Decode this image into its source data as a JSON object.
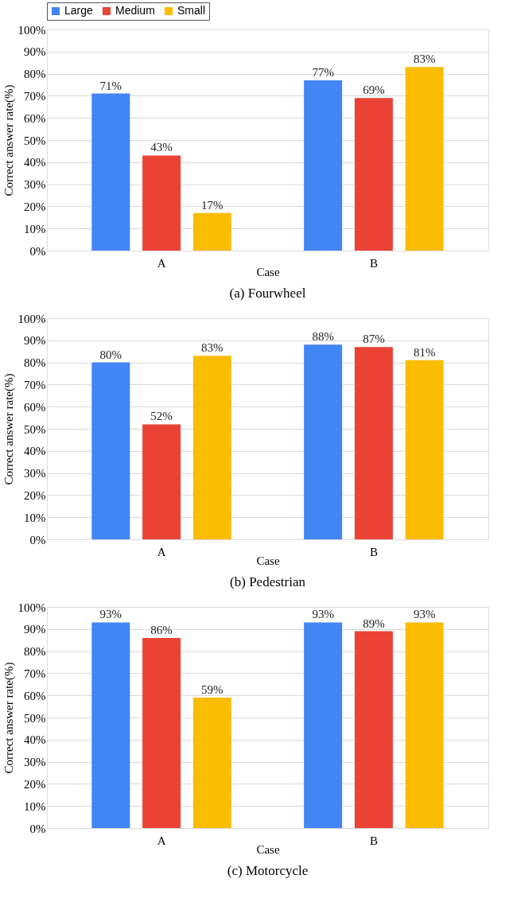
{
  "chart_data": [
    {
      "type": "bar",
      "title": "(a)  Fourwheel",
      "xlabel": "Case",
      "ylabel": "Correct answer rate(%)",
      "categories": [
        "A",
        "B"
      ],
      "series": [
        {
          "name": "Large",
          "color": "#4285f4",
          "values": [
            71,
            77
          ],
          "value_labels": [
            "71%",
            "77%"
          ]
        },
        {
          "name": "Medium",
          "color": "#ea4335",
          "values": [
            43,
            69
          ],
          "value_labels": [
            "43%",
            "69%"
          ]
        },
        {
          "name": "Small",
          "color": "#fbbc04",
          "values": [
            17,
            83
          ],
          "value_labels": [
            "17%",
            "83%"
          ]
        }
      ],
      "ylim": [
        0,
        100
      ],
      "yticks": [
        {
          "value": 0,
          "label": "0%"
        },
        {
          "value": 10,
          "label": "10%"
        },
        {
          "value": 20,
          "label": "20%"
        },
        {
          "value": 30,
          "label": "30%"
        },
        {
          "value": 40,
          "label": "40%"
        },
        {
          "value": 50,
          "label": "50%"
        },
        {
          "value": 60,
          "label": "60%"
        },
        {
          "value": 70,
          "label": "70%"
        },
        {
          "value": 80,
          "label": "80%"
        },
        {
          "value": 90,
          "label": "90%"
        },
        {
          "value": 100,
          "label": "100%"
        }
      ],
      "grid": "y",
      "legend": "top"
    },
    {
      "type": "bar",
      "title": "(b)  Pedestrian",
      "xlabel": "Case",
      "ylabel": "Correct answer rate(%)",
      "categories": [
        "A",
        "B"
      ],
      "series": [
        {
          "name": "Large",
          "color": "#4285f4",
          "values": [
            80,
            88
          ],
          "value_labels": [
            "80%",
            "88%"
          ]
        },
        {
          "name": "Medium",
          "color": "#ea4335",
          "values": [
            52,
            87
          ],
          "value_labels": [
            "52%",
            "87%"
          ]
        },
        {
          "name": "Small",
          "color": "#fbbc04",
          "values": [
            83,
            81
          ],
          "value_labels": [
            "83%",
            "81%"
          ]
        }
      ],
      "ylim": [
        0,
        100
      ],
      "yticks": [
        {
          "value": 0,
          "label": "0%"
        },
        {
          "value": 10,
          "label": "10%"
        },
        {
          "value": 20,
          "label": "20%"
        },
        {
          "value": 30,
          "label": "30%"
        },
        {
          "value": 40,
          "label": "40%"
        },
        {
          "value": 50,
          "label": "50%"
        },
        {
          "value": 60,
          "label": "60%"
        },
        {
          "value": 70,
          "label": "70%"
        },
        {
          "value": 80,
          "label": "80%"
        },
        {
          "value": 90,
          "label": "90%"
        },
        {
          "value": 100,
          "label": "100%"
        }
      ],
      "grid": "y",
      "legend": "top"
    },
    {
      "type": "bar",
      "title": "(c)  Motorcycle",
      "xlabel": "Case",
      "ylabel": "Correct answer rate(%)",
      "categories": [
        "A",
        "B"
      ],
      "series": [
        {
          "name": "Large",
          "color": "#4285f4",
          "values": [
            93,
            93
          ],
          "value_labels": [
            "93%",
            "93%"
          ]
        },
        {
          "name": "Medium",
          "color": "#ea4335",
          "values": [
            86,
            89
          ],
          "value_labels": [
            "86%",
            "89%"
          ]
        },
        {
          "name": "Small",
          "color": "#fbbc04",
          "values": [
            59,
            93
          ],
          "value_labels": [
            "59%",
            "93%"
          ]
        }
      ],
      "ylim": [
        0,
        100
      ],
      "yticks": [
        {
          "value": 0,
          "label": "0%"
        },
        {
          "value": 10,
          "label": "10%"
        },
        {
          "value": 20,
          "label": "20%"
        },
        {
          "value": 30,
          "label": "30%"
        },
        {
          "value": 40,
          "label": "40%"
        },
        {
          "value": 50,
          "label": "50%"
        },
        {
          "value": 60,
          "label": "60%"
        },
        {
          "value": 70,
          "label": "70%"
        },
        {
          "value": 80,
          "label": "80%"
        },
        {
          "value": 90,
          "label": "90%"
        },
        {
          "value": 100,
          "label": "100%"
        }
      ],
      "grid": "y",
      "legend": "top"
    }
  ]
}
